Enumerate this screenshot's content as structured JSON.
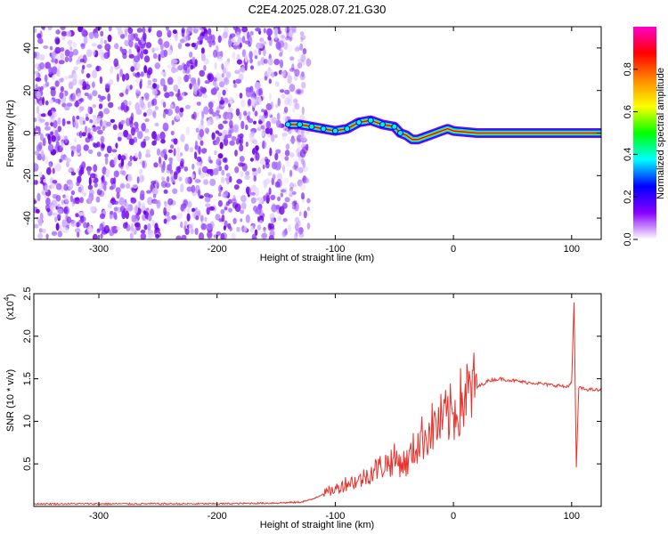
{
  "title": "C2E4.2025.028.07.21.G30",
  "chart_data": [
    {
      "type": "heatmap",
      "xlabel": "Height of straight line (km)",
      "ylabel": "Frequency (Hz)",
      "xlim": [
        -355,
        125
      ],
      "ylim": [
        -50,
        50
      ],
      "xticks": [
        -300,
        -200,
        -100,
        0,
        100
      ],
      "xtick_labels": [
        "-300",
        "-200",
        "-100",
        "0",
        "100"
      ],
      "yticks": [
        -40,
        -20,
        0,
        20,
        40
      ],
      "ytick_labels": [
        "-40",
        "-20",
        "0",
        "20",
        "40"
      ],
      "colorbar": {
        "label": "Normalized spectral amplitude",
        "range": [
          0,
          1
        ],
        "ticks": [
          0.0,
          0.2,
          0.4,
          0.6,
          0.8
        ],
        "tick_labels": [
          "0.0",
          "0.2",
          "0.4",
          "0.6",
          "0.8"
        ],
        "colors": [
          "#ffffff",
          "#8800ff",
          "#0000ff",
          "#00ffff",
          "#00ff00",
          "#ffff00",
          "#ff8800",
          "#ff0000",
          "#ff00cc"
        ]
      },
      "noise_region_x": [
        -355,
        -130
      ],
      "signal_trace": {
        "x": [
          -140,
          -130,
          -120,
          -110,
          -100,
          -90,
          -80,
          -70,
          -60,
          -50,
          -45,
          -40,
          -35,
          -30,
          -25,
          -20,
          -15,
          -10,
          -5,
          0,
          20,
          40,
          60,
          80,
          100,
          125
        ],
        "y": [
          4,
          4,
          3,
          2,
          1,
          2,
          5,
          6,
          4,
          3,
          0,
          -1,
          -3,
          -3,
          -2,
          -1,
          0,
          1,
          2,
          1,
          0,
          0,
          0,
          0,
          0,
          0
        ]
      }
    },
    {
      "type": "line",
      "xlabel": "Height of straight line (km)",
      "ylabel": "SNR (10 * v/v)",
      "y_multiplier": "(x10",
      "y_multiplier_exp": "4",
      "xlim": [
        -355,
        125
      ],
      "ylim": [
        0,
        2.5
      ],
      "xticks": [
        -300,
        -200,
        -100,
        0,
        100
      ],
      "xtick_labels": [
        "-300",
        "-200",
        "-100",
        "0",
        "100"
      ],
      "yticks": [
        0.5,
        1.0,
        1.5,
        2.0,
        2.5
      ],
      "ytick_labels": [
        "0.5",
        "1.0",
        "1.5",
        "2.0",
        "2.5"
      ],
      "series": [
        {
          "color": "#e8312a",
          "x": [
            -355,
            -300,
            -250,
            -200,
            -150,
            -130,
            -120,
            -110,
            -100,
            -90,
            -80,
            -70,
            -60,
            -50,
            -40,
            -30,
            -20,
            -10,
            0,
            10,
            20,
            30,
            40,
            50,
            60,
            70,
            80,
            90,
            95,
            100,
            102,
            104,
            106,
            110,
            120,
            125
          ],
          "y": [
            0.03,
            0.03,
            0.03,
            0.03,
            0.04,
            0.05,
            0.08,
            0.15,
            0.2,
            0.28,
            0.3,
            0.4,
            0.48,
            0.55,
            0.5,
            0.75,
            0.9,
            1.0,
            1.1,
            1.3,
            1.4,
            1.48,
            1.5,
            1.48,
            1.46,
            1.45,
            1.43,
            1.42,
            1.4,
            1.45,
            2.4,
            0.45,
            1.4,
            1.38,
            1.37,
            1.36
          ]
        }
      ]
    }
  ]
}
